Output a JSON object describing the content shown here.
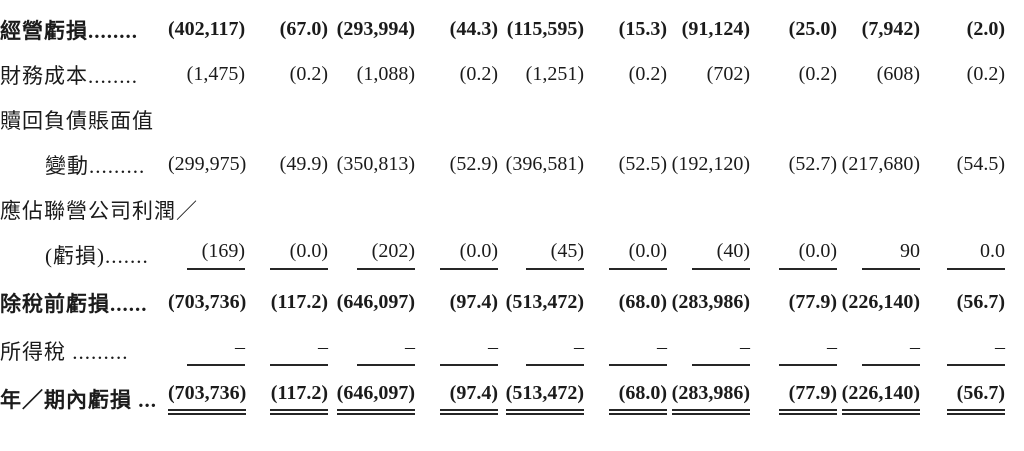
{
  "colors": {
    "background": "#ffffff",
    "text": "#1b1b1b",
    "rule": "#262626"
  },
  "table": {
    "rows": [
      {
        "label": "經營虧損........",
        "bold": true,
        "indent": false,
        "rule": "none",
        "values": [
          "(402,117)",
          "(67.0)",
          "(293,994)",
          "(44.3)",
          "(115,595)",
          "(15.3)",
          "(91,124)",
          "(25.0)",
          "(7,942)",
          "(2.0)"
        ]
      },
      {
        "label": "財務成本........",
        "bold": false,
        "indent": false,
        "rule": "none",
        "values": [
          "(1,475)",
          "(0.2)",
          "(1,088)",
          "(0.2)",
          "(1,251)",
          "(0.2)",
          "(702)",
          "(0.2)",
          "(608)",
          "(0.2)"
        ]
      },
      {
        "label": "贖回負債賬面值",
        "bold": false,
        "indent": false,
        "rule": "none",
        "values": null
      },
      {
        "label": "變動.........",
        "bold": false,
        "indent": true,
        "rule": "none",
        "values": [
          "(299,975)",
          "(49.9)",
          "(350,813)",
          "(52.9)",
          "(396,581)",
          "(52.5)",
          "(192,120)",
          "(52.7)",
          "(217,680)",
          "(54.5)"
        ]
      },
      {
        "label": "應佔聯營公司利潤／",
        "bold": false,
        "indent": false,
        "rule": "none",
        "values": null
      },
      {
        "label": "(虧損).......",
        "bold": false,
        "indent": true,
        "rule": "single",
        "values": [
          "(169)",
          "(0.0)",
          "(202)",
          "(0.0)",
          "(45)",
          "(0.0)",
          "(40)",
          "(0.0)",
          "90",
          "0.0"
        ]
      },
      {
        "label": "除稅前虧損......",
        "bold": true,
        "indent": false,
        "tall": true,
        "rule": "none",
        "values": [
          "(703,736)",
          "(117.2)",
          "(646,097)",
          "(97.4)",
          "(513,472)",
          "(68.0)",
          "(283,986)",
          "(77.9)",
          "(226,140)",
          "(56.7)"
        ]
      },
      {
        "label": "所得稅 .........",
        "bold": false,
        "indent": false,
        "rule": "single",
        "values": [
          "–",
          "–",
          "–",
          "–",
          "–",
          "–",
          "–",
          "–",
          "–",
          "–"
        ]
      },
      {
        "label": "年／期內虧損 ...",
        "bold": true,
        "indent": false,
        "tall": true,
        "rule": "double",
        "values": [
          "(703,736)",
          "(117.2)",
          "(646,097)",
          "(97.4)",
          "(513,472)",
          "(68.0)",
          "(283,986)",
          "(77.9)",
          "(226,140)",
          "(56.7)"
        ]
      }
    ]
  }
}
